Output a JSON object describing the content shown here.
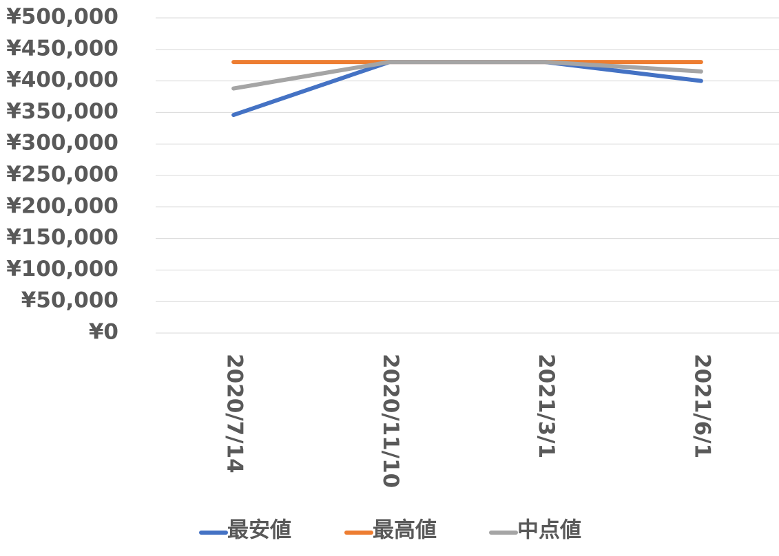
{
  "chart_data": {
    "type": "line",
    "categories": [
      "2020/7/14",
      "2020/11/10",
      "2021/3/1",
      "2021/6/1"
    ],
    "series": [
      {
        "name": "最安値",
        "color": "#4472c4",
        "values": [
          346000,
          430000,
          430000,
          400000
        ]
      },
      {
        "name": "最高値",
        "color": "#ed7d31",
        "values": [
          430000,
          430000,
          430000,
          430000
        ]
      },
      {
        "name": "中点値",
        "color": "#a5a5a5",
        "values": [
          388000,
          430000,
          430000,
          415000
        ]
      }
    ],
    "ylim": [
      0,
      500000
    ],
    "yticks": [
      {
        "value": 0,
        "label": "¥0"
      },
      {
        "value": 50000,
        "label": "¥50,000"
      },
      {
        "value": 100000,
        "label": "¥100,000"
      },
      {
        "value": 150000,
        "label": "¥150,000"
      },
      {
        "value": 200000,
        "label": "¥200,000"
      },
      {
        "value": 250000,
        "label": "¥250,000"
      },
      {
        "value": 300000,
        "label": "¥300,000"
      },
      {
        "value": 350000,
        "label": "¥350,000"
      },
      {
        "value": 400000,
        "label": "¥400,000"
      },
      {
        "value": 450000,
        "label": "¥450,000"
      },
      {
        "value": 500000,
        "label": "¥500,000"
      }
    ],
    "grid": true,
    "legend": "bottom"
  }
}
